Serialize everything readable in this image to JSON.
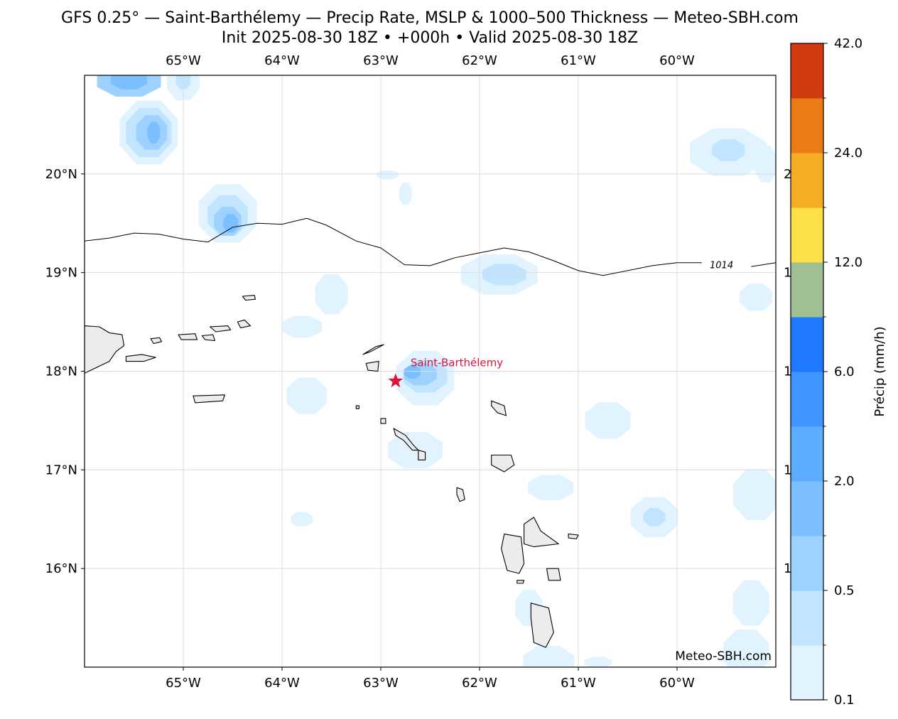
{
  "title": {
    "line1": "GFS 0.25° — Saint-Barthélemy — Precip Rate, MSLP & 1000–500 Thickness — Meteo-SBH.com",
    "line2": "Init 2025-08-30 18Z • +000h • Valid 2025-08-30 18Z"
  },
  "map": {
    "lon_range": [
      -66.0,
      -59.0
    ],
    "lat_range": [
      15.0,
      21.0
    ],
    "lon_ticks": [
      {
        "value": -65,
        "label": "65°W"
      },
      {
        "value": -64,
        "label": "64°W"
      },
      {
        "value": -63,
        "label": "63°W"
      },
      {
        "value": -62,
        "label": "62°W"
      },
      {
        "value": -61,
        "label": "61°W"
      },
      {
        "value": -60,
        "label": "60°W"
      }
    ],
    "lat_ticks": [
      {
        "value": 20,
        "label": "20°N"
      },
      {
        "value": 19,
        "label": "19°N"
      },
      {
        "value": 18,
        "label": "18°N"
      },
      {
        "value": 17,
        "label": "17°N"
      },
      {
        "value": 16,
        "label": "16°N"
      }
    ],
    "right_fragments": [
      {
        "lat": 20,
        "label": "2"
      },
      {
        "lat": 19,
        "label": "1"
      },
      {
        "lat": 18,
        "label": "1"
      },
      {
        "lat": 17,
        "label": "1"
      },
      {
        "lat": 16,
        "label": "1"
      }
    ],
    "grid": true,
    "isobar": {
      "label": "1014",
      "label_lon": -59.55,
      "label_lat": 19.08,
      "points": [
        [
          -66.0,
          19.32
        ],
        [
          -65.75,
          19.35
        ],
        [
          -65.5,
          19.4
        ],
        [
          -65.25,
          19.39
        ],
        [
          -65.0,
          19.34
        ],
        [
          -64.75,
          19.31
        ],
        [
          -64.5,
          19.46
        ],
        [
          -64.25,
          19.5
        ],
        [
          -64.0,
          19.49
        ],
        [
          -63.75,
          19.55
        ],
        [
          -63.55,
          19.48
        ],
        [
          -63.25,
          19.32
        ],
        [
          -63.0,
          19.25
        ],
        [
          -62.76,
          19.08
        ],
        [
          -62.5,
          19.07
        ],
        [
          -62.25,
          19.15
        ],
        [
          -62.0,
          19.2
        ],
        [
          -61.75,
          19.25
        ],
        [
          -61.5,
          19.21
        ],
        [
          -61.25,
          19.12
        ],
        [
          -61.0,
          19.02
        ],
        [
          -60.75,
          18.97
        ],
        [
          -60.5,
          19.02
        ],
        [
          -60.25,
          19.07
        ],
        [
          -60.0,
          19.1
        ],
        [
          -59.75,
          19.1
        ],
        [
          -59.55,
          19.08
        ],
        [
          -59.25,
          19.06
        ],
        [
          -59.0,
          19.1
        ]
      ]
    },
    "location": {
      "name": "Saint-Barthélemy",
      "lon": -62.85,
      "lat": 17.9,
      "color": "#dc143c"
    },
    "watermark": "Meteo-SBH.com",
    "land_color": "#ececec",
    "precip_cells": [
      {
        "lon": -65.55,
        "lat": 20.95,
        "rx": 0.35,
        "ry": 0.18,
        "level": 3
      },
      {
        "lon": -65.55,
        "lat": 20.95,
        "rx": 0.2,
        "ry": 0.1,
        "level": 4
      },
      {
        "lon": -65.0,
        "lat": 20.95,
        "rx": 0.18,
        "ry": 0.22,
        "level": 1
      },
      {
        "lon": -65.0,
        "lat": 20.95,
        "rx": 0.08,
        "ry": 0.1,
        "level": 2
      },
      {
        "lon": -65.35,
        "lat": 20.42,
        "rx": 0.32,
        "ry": 0.35,
        "level": 1
      },
      {
        "lon": -65.35,
        "lat": 20.42,
        "rx": 0.25,
        "ry": 0.27,
        "level": 2
      },
      {
        "lon": -65.32,
        "lat": 20.42,
        "rx": 0.17,
        "ry": 0.19,
        "level": 3
      },
      {
        "lon": -65.3,
        "lat": 20.42,
        "rx": 0.07,
        "ry": 0.12,
        "level": 4
      },
      {
        "lon": -64.55,
        "lat": 19.6,
        "rx": 0.32,
        "ry": 0.32,
        "level": 1
      },
      {
        "lon": -64.55,
        "lat": 19.58,
        "rx": 0.22,
        "ry": 0.22,
        "level": 2
      },
      {
        "lon": -64.55,
        "lat": 19.52,
        "rx": 0.15,
        "ry": 0.16,
        "level": 3
      },
      {
        "lon": -64.52,
        "lat": 19.5,
        "rx": 0.08,
        "ry": 0.1,
        "level": 4
      },
      {
        "lon": -62.93,
        "lat": 19.99,
        "rx": 0.12,
        "ry": 0.05,
        "level": 1
      },
      {
        "lon": -62.75,
        "lat": 19.8,
        "rx": 0.07,
        "ry": 0.12,
        "level": 1
      },
      {
        "lon": -62.55,
        "lat": 17.93,
        "rx": 0.32,
        "ry": 0.3,
        "level": 1
      },
      {
        "lon": -62.55,
        "lat": 17.95,
        "rx": 0.24,
        "ry": 0.18,
        "level": 2
      },
      {
        "lon": -62.6,
        "lat": 17.97,
        "rx": 0.18,
        "ry": 0.12,
        "level": 3
      },
      {
        "lon": -62.68,
        "lat": 17.99,
        "rx": 0.09,
        "ry": 0.07,
        "level": 4
      },
      {
        "lon": -63.5,
        "lat": 18.78,
        "rx": 0.18,
        "ry": 0.22,
        "level": 1
      },
      {
        "lon": -63.8,
        "lat": 18.45,
        "rx": 0.22,
        "ry": 0.12,
        "level": 1
      },
      {
        "lon": -63.75,
        "lat": 17.75,
        "rx": 0.22,
        "ry": 0.2,
        "level": 1
      },
      {
        "lon": -61.8,
        "lat": 18.98,
        "rx": 0.42,
        "ry": 0.22,
        "level": 1
      },
      {
        "lon": -61.75,
        "lat": 18.98,
        "rx": 0.24,
        "ry": 0.12,
        "level": 2
      },
      {
        "lon": -59.48,
        "lat": 20.22,
        "rx": 0.42,
        "ry": 0.26,
        "level": 1
      },
      {
        "lon": -59.48,
        "lat": 20.24,
        "rx": 0.18,
        "ry": 0.12,
        "level": 2
      },
      {
        "lon": -59.1,
        "lat": 20.1,
        "rx": 0.12,
        "ry": 0.2,
        "level": 1
      },
      {
        "lon": -59.2,
        "lat": 18.75,
        "rx": 0.18,
        "ry": 0.15,
        "level": 1
      },
      {
        "lon": -60.7,
        "lat": 17.5,
        "rx": 0.25,
        "ry": 0.2,
        "level": 1
      },
      {
        "lon": -62.65,
        "lat": 17.2,
        "rx": 0.3,
        "ry": 0.2,
        "level": 1
      },
      {
        "lon": -61.28,
        "lat": 16.82,
        "rx": 0.25,
        "ry": 0.14,
        "level": 1
      },
      {
        "lon": -59.2,
        "lat": 16.75,
        "rx": 0.25,
        "ry": 0.28,
        "level": 1
      },
      {
        "lon": -60.23,
        "lat": 16.52,
        "rx": 0.26,
        "ry": 0.22,
        "level": 1
      },
      {
        "lon": -60.23,
        "lat": 16.52,
        "rx": 0.12,
        "ry": 0.1,
        "level": 2
      },
      {
        "lon": -63.8,
        "lat": 16.5,
        "rx": 0.12,
        "ry": 0.08,
        "level": 1
      },
      {
        "lon": -59.25,
        "lat": 15.65,
        "rx": 0.2,
        "ry": 0.25,
        "level": 1
      },
      {
        "lon": -59.3,
        "lat": 15.15,
        "rx": 0.25,
        "ry": 0.25,
        "level": 1
      },
      {
        "lon": -61.3,
        "lat": 15.05,
        "rx": 0.28,
        "ry": 0.18,
        "level": 1
      },
      {
        "lon": -61.5,
        "lat": 15.6,
        "rx": 0.15,
        "ry": 0.2,
        "level": 1
      },
      {
        "lon": -60.8,
        "lat": 15.05,
        "rx": 0.15,
        "ry": 0.06,
        "level": 1
      }
    ],
    "islands": [
      {
        "name": "puerto-rico",
        "pts": [
          [
            -66.0,
            18.46
          ],
          [
            -65.85,
            18.45
          ],
          [
            -65.75,
            18.39
          ],
          [
            -65.62,
            18.37
          ],
          [
            -65.6,
            18.26
          ],
          [
            -65.68,
            18.2
          ],
          [
            -65.75,
            18.1
          ],
          [
            -66.0,
            17.98
          ]
        ]
      },
      {
        "name": "culebra",
        "pts": [
          [
            -65.33,
            18.33
          ],
          [
            -65.24,
            18.34
          ],
          [
            -65.22,
            18.3
          ],
          [
            -65.3,
            18.28
          ]
        ]
      },
      {
        "name": "vieques",
        "pts": [
          [
            -65.58,
            18.15
          ],
          [
            -65.42,
            18.17
          ],
          [
            -65.28,
            18.14
          ],
          [
            -65.4,
            18.1
          ],
          [
            -65.58,
            18.1
          ]
        ]
      },
      {
        "name": "st-thomas",
        "pts": [
          [
            -65.05,
            18.37
          ],
          [
            -64.88,
            18.38
          ],
          [
            -64.86,
            18.32
          ],
          [
            -65.02,
            18.32
          ]
        ]
      },
      {
        "name": "st-john",
        "pts": [
          [
            -64.81,
            18.36
          ],
          [
            -64.7,
            18.37
          ],
          [
            -64.68,
            18.31
          ],
          [
            -64.78,
            18.32
          ]
        ]
      },
      {
        "name": "tortola",
        "pts": [
          [
            -64.73,
            18.45
          ],
          [
            -64.55,
            18.46
          ],
          [
            -64.52,
            18.42
          ],
          [
            -64.67,
            18.4
          ]
        ]
      },
      {
        "name": "virgin-gorda",
        "pts": [
          [
            -64.45,
            18.5
          ],
          [
            -64.38,
            18.52
          ],
          [
            -64.32,
            18.46
          ],
          [
            -64.42,
            18.44
          ]
        ]
      },
      {
        "name": "anegada",
        "pts": [
          [
            -64.4,
            18.76
          ],
          [
            -64.28,
            18.77
          ],
          [
            -64.27,
            18.73
          ],
          [
            -64.37,
            18.72
          ]
        ]
      },
      {
        "name": "st-croix",
        "pts": [
          [
            -64.9,
            17.75
          ],
          [
            -64.58,
            17.76
          ],
          [
            -64.6,
            17.7
          ],
          [
            -64.88,
            17.68
          ]
        ]
      },
      {
        "name": "anguilla",
        "pts": [
          [
            -63.18,
            18.17
          ],
          [
            -63.05,
            18.25
          ],
          [
            -62.97,
            18.27
          ],
          [
            -63.1,
            18.2
          ]
        ]
      },
      {
        "name": "st-martin",
        "pts": [
          [
            -63.15,
            18.08
          ],
          [
            -63.02,
            18.1
          ],
          [
            -63.03,
            18.0
          ],
          [
            -63.13,
            18.01
          ]
        ]
      },
      {
        "name": "saba",
        "pts": [
          [
            -63.25,
            17.65
          ],
          [
            -63.22,
            17.65
          ],
          [
            -63.22,
            17.62
          ],
          [
            -63.25,
            17.62
          ]
        ]
      },
      {
        "name": "statia",
        "pts": [
          [
            -63.0,
            17.52
          ],
          [
            -62.95,
            17.52
          ],
          [
            -62.95,
            17.47
          ],
          [
            -63.0,
            17.47
          ]
        ]
      },
      {
        "name": "st-kitts",
        "pts": [
          [
            -62.87,
            17.42
          ],
          [
            -62.75,
            17.35
          ],
          [
            -62.67,
            17.25
          ],
          [
            -62.62,
            17.2
          ],
          [
            -62.68,
            17.2
          ],
          [
            -62.77,
            17.3
          ],
          [
            -62.85,
            17.35
          ]
        ]
      },
      {
        "name": "nevis",
        "pts": [
          [
            -62.62,
            17.2
          ],
          [
            -62.55,
            17.18
          ],
          [
            -62.55,
            17.1
          ],
          [
            -62.62,
            17.1
          ]
        ]
      },
      {
        "name": "montserrat",
        "pts": [
          [
            -62.23,
            16.82
          ],
          [
            -62.17,
            16.8
          ],
          [
            -62.15,
            16.7
          ],
          [
            -62.2,
            16.68
          ],
          [
            -62.23,
            16.75
          ]
        ]
      },
      {
        "name": "barbuda",
        "pts": [
          [
            -61.88,
            17.7
          ],
          [
            -61.75,
            17.65
          ],
          [
            -61.73,
            17.55
          ],
          [
            -61.82,
            17.58
          ],
          [
            -61.88,
            17.65
          ]
        ]
      },
      {
        "name": "antigua",
        "pts": [
          [
            -61.88,
            17.15
          ],
          [
            -61.68,
            17.15
          ],
          [
            -61.65,
            17.05
          ],
          [
            -61.75,
            16.98
          ],
          [
            -61.88,
            17.05
          ]
        ]
      },
      {
        "name": "basse-terre",
        "pts": [
          [
            -61.75,
            16.35
          ],
          [
            -61.58,
            16.32
          ],
          [
            -61.55,
            16.05
          ],
          [
            -61.6,
            15.95
          ],
          [
            -61.72,
            15.98
          ],
          [
            -61.78,
            16.2
          ]
        ]
      },
      {
        "name": "grande-terre",
        "pts": [
          [
            -61.55,
            16.45
          ],
          [
            -61.45,
            16.52
          ],
          [
            -61.38,
            16.38
          ],
          [
            -61.2,
            16.25
          ],
          [
            -61.45,
            16.22
          ],
          [
            -61.55,
            16.25
          ]
        ]
      },
      {
        "name": "la-desirade",
        "pts": [
          [
            -61.1,
            16.35
          ],
          [
            -61.0,
            16.34
          ],
          [
            -61.02,
            16.3
          ],
          [
            -61.1,
            16.31
          ]
        ]
      },
      {
        "name": "marie-galante",
        "pts": [
          [
            -61.32,
            16.0
          ],
          [
            -61.2,
            16.0
          ],
          [
            -61.18,
            15.88
          ],
          [
            -61.3,
            15.88
          ]
        ]
      },
      {
        "name": "dominica",
        "pts": [
          [
            -61.48,
            15.65
          ],
          [
            -61.3,
            15.6
          ],
          [
            -61.25,
            15.35
          ],
          [
            -61.33,
            15.2
          ],
          [
            -61.45,
            15.25
          ],
          [
            -61.48,
            15.5
          ]
        ]
      },
      {
        "name": "les-saintes",
        "pts": [
          [
            -61.62,
            15.88
          ],
          [
            -61.55,
            15.88
          ],
          [
            -61.56,
            15.85
          ],
          [
            -61.62,
            15.85
          ]
        ]
      }
    ]
  },
  "colorbar": {
    "label": "Précip (mm/h)",
    "colors": [
      "#e1f3ff",
      "#c1e4ff",
      "#9dd1ff",
      "#7cbfff",
      "#5eacff",
      "#3f96ff",
      "#1f7aff",
      "#a0c094",
      "#fce04a",
      "#f5ad24",
      "#eb7b14",
      "#d03a0f"
    ],
    "tick_labels": [
      "0.1",
      "0.5",
      "2.0",
      "6.0",
      "12.0",
      "24.0",
      "42.0"
    ]
  }
}
